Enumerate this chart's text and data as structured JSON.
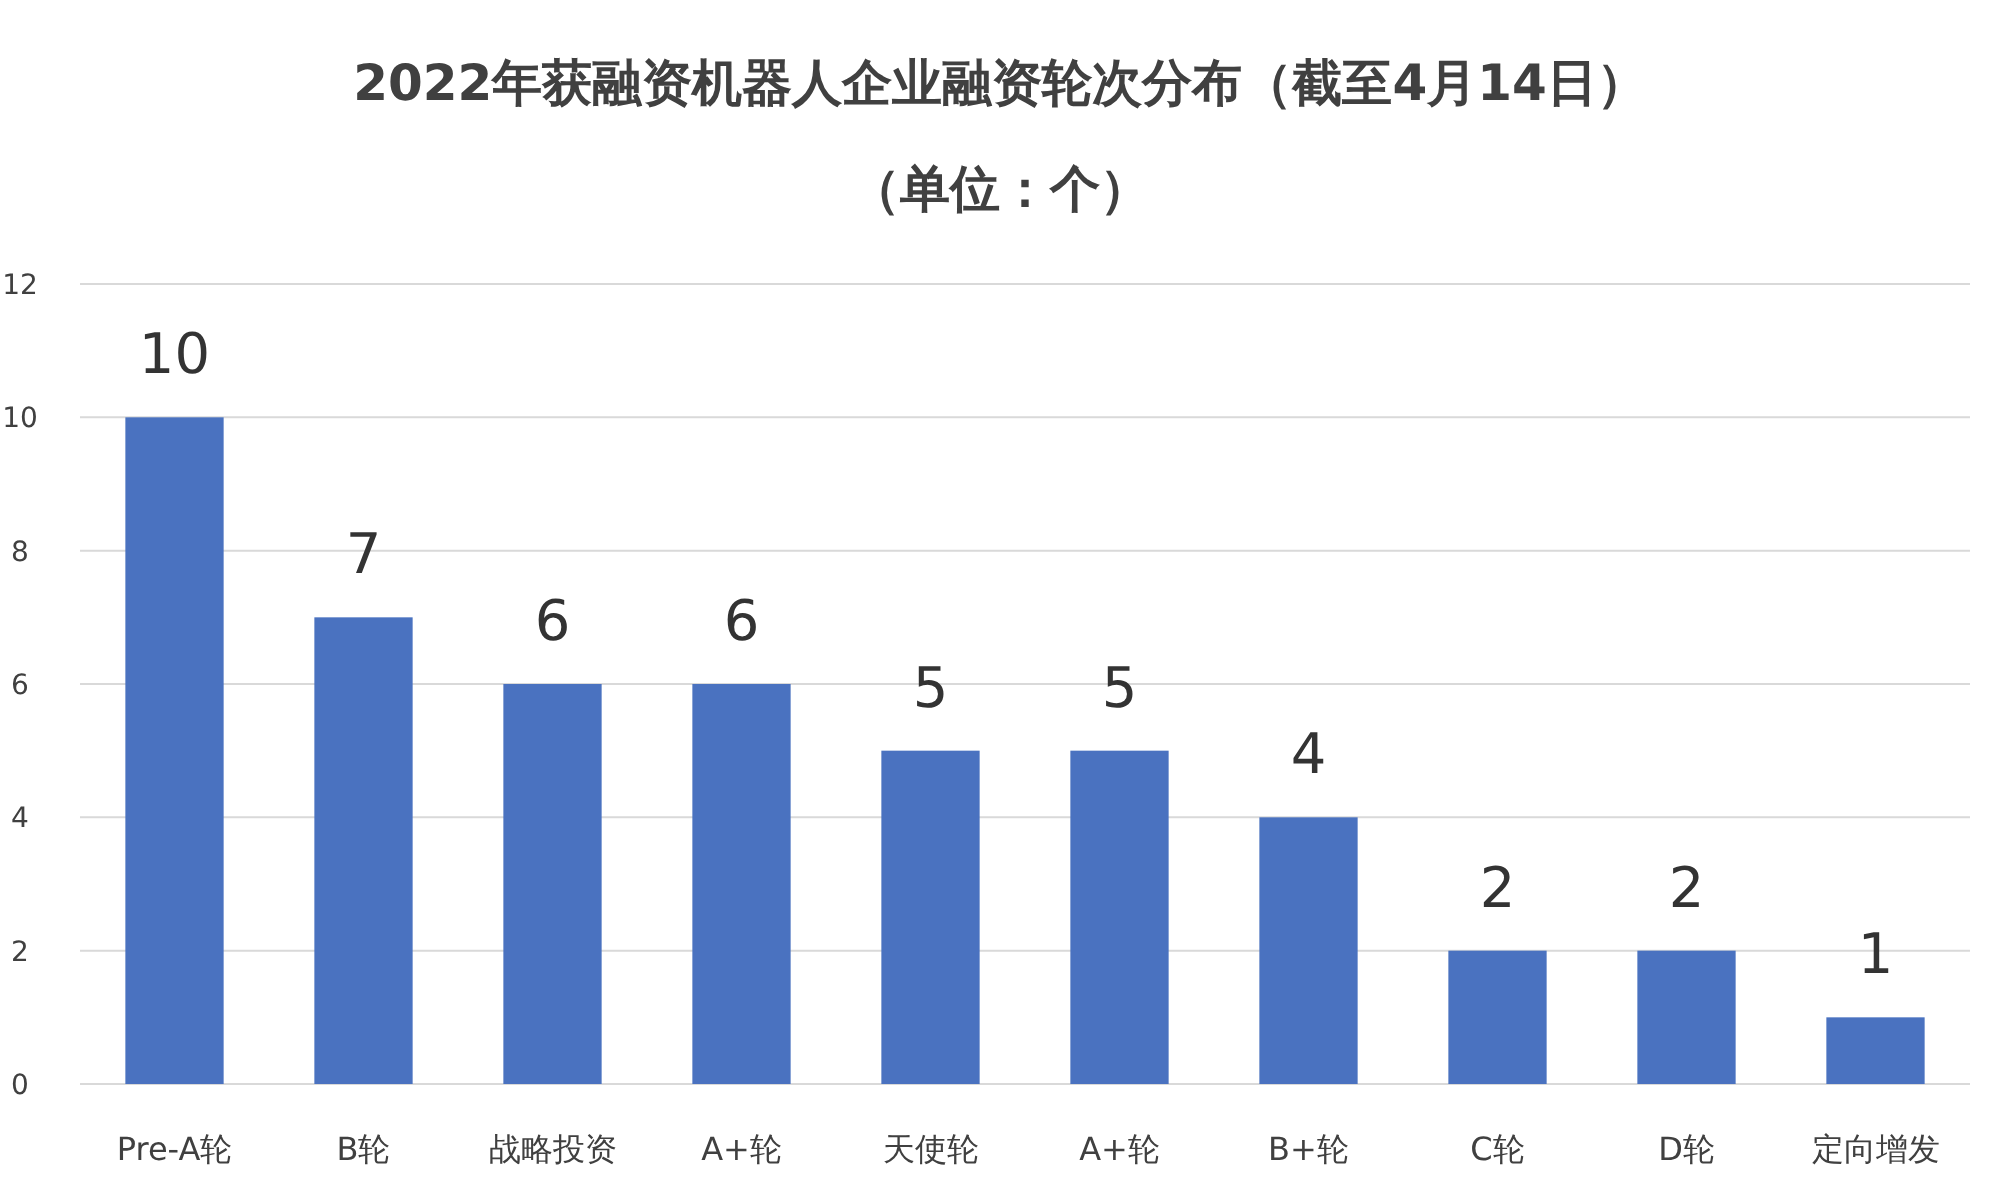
{
  "chart_data": {
    "type": "bar",
    "title": "2022年获融资机器人企业融资轮次分布（截至4月14日）",
    "subtitle": "（单位：个）",
    "categories": [
      "Pre-A轮",
      "B轮",
      "战略投资",
      "A+轮",
      "天使轮",
      "A+轮",
      "B+轮",
      "C轮",
      "D轮",
      "定向增发"
    ],
    "values": [
      10,
      7,
      6,
      6,
      5,
      5,
      4,
      2,
      2,
      1
    ],
    "color": "#4a72c0",
    "ylim": [
      0,
      12
    ],
    "yticks": [
      0,
      2,
      4,
      6,
      8,
      10,
      12
    ],
    "grid": "y",
    "data_labels": true
  }
}
